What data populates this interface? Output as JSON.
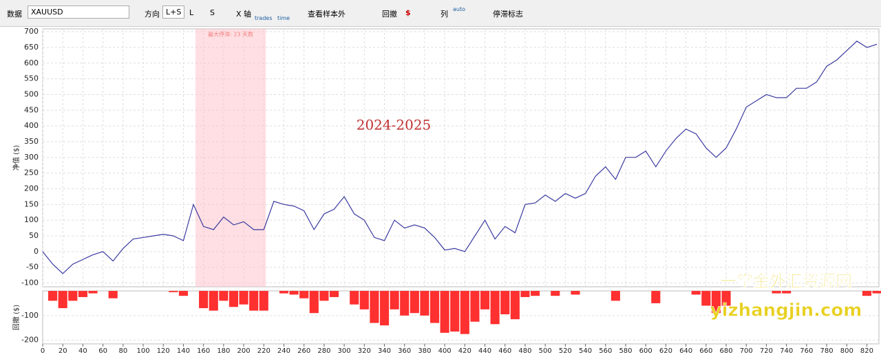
{
  "toolbar": {
    "data_label": "数据",
    "symbol": "XAUUSD",
    "direction_label": "方向",
    "direction_options": [
      "L+S",
      "L",
      "S"
    ],
    "x_axis_label": "X 轴",
    "x_axis_options": [
      "trades",
      "time"
    ],
    "out_of_sample_label": "查看样本外",
    "drawdown_label": "回撤",
    "drawdown_icon": "$",
    "columns_label": "列",
    "columns_icon": "auto",
    "stagnation_label": "停滞标志"
  },
  "chart_data": [
    {
      "type": "line",
      "ylabel": "净值 ($)",
      "annotation": "2024-2025",
      "stagnation": {
        "label": "最大停滞: 23 天数",
        "x_range": [
          152,
          222
        ]
      },
      "color": "#3a3aa0",
      "grid": true,
      "x": [
        0,
        10,
        20,
        30,
        40,
        50,
        60,
        70,
        80,
        90,
        100,
        110,
        120,
        130,
        140,
        150,
        160,
        170,
        180,
        190,
        200,
        210,
        220,
        230,
        240,
        250,
        260,
        270,
        280,
        290,
        300,
        310,
        320,
        330,
        340,
        350,
        360,
        370,
        380,
        390,
        400,
        410,
        420,
        430,
        440,
        450,
        460,
        470,
        480,
        490,
        500,
        510,
        520,
        530,
        540,
        550,
        560,
        570,
        580,
        590,
        600,
        610,
        620,
        630,
        640,
        650,
        660,
        670,
        680,
        690,
        700,
        710,
        720,
        730,
        740,
        750,
        760,
        770,
        780,
        790,
        800,
        810,
        820,
        830
      ],
      "values": [
        0,
        -40,
        -70,
        -40,
        -25,
        -10,
        0,
        -30,
        10,
        40,
        45,
        50,
        55,
        50,
        35,
        150,
        80,
        70,
        110,
        85,
        95,
        70,
        70,
        160,
        150,
        145,
        130,
        70,
        120,
        135,
        175,
        120,
        100,
        45,
        35,
        100,
        75,
        85,
        75,
        45,
        5,
        10,
        0,
        50,
        100,
        40,
        80,
        60,
        150,
        155,
        180,
        160,
        185,
        170,
        185,
        240,
        270,
        230,
        300,
        300,
        320,
        270,
        320,
        360,
        390,
        375,
        330,
        300,
        330,
        390,
        460,
        480,
        500,
        490,
        490,
        520,
        520,
        540,
        590,
        610,
        640,
        670,
        650,
        660
      ],
      "xlim": [
        0,
        832
      ],
      "xticks": [
        0,
        20,
        40,
        60,
        80,
        100,
        120,
        140,
        160,
        180,
        200,
        220,
        240,
        260,
        280,
        300,
        320,
        340,
        360,
        380,
        400,
        420,
        440,
        460,
        480,
        500,
        520,
        540,
        560,
        580,
        600,
        620,
        640,
        660,
        680,
        700,
        720,
        740,
        760,
        780,
        800,
        820
      ],
      "ylim": [
        -112,
        709
      ],
      "yticks": [
        -100,
        -50,
        0,
        50,
        100,
        150,
        200,
        250,
        300,
        350,
        400,
        450,
        500,
        550,
        600,
        650,
        700
      ]
    },
    {
      "type": "bar",
      "ylabel": "回撤 ($)",
      "color": "#ff3030",
      "grid": true,
      "x": [
        0,
        10,
        20,
        30,
        40,
        50,
        60,
        70,
        80,
        90,
        100,
        110,
        120,
        130,
        140,
        150,
        160,
        170,
        180,
        190,
        200,
        210,
        220,
        230,
        240,
        250,
        260,
        270,
        280,
        290,
        300,
        310,
        320,
        330,
        340,
        350,
        360,
        370,
        380,
        390,
        400,
        410,
        420,
        430,
        440,
        450,
        460,
        470,
        480,
        490,
        500,
        510,
        520,
        530,
        540,
        550,
        560,
        570,
        580,
        590,
        600,
        610,
        620,
        630,
        640,
        650,
        660,
        670,
        680,
        690,
        700,
        710,
        720,
        730,
        740,
        750,
        760,
        770,
        780,
        790,
        800,
        810,
        820,
        830
      ],
      "values": [
        0,
        -40,
        -70,
        -40,
        -25,
        -10,
        0,
        -30,
        0,
        0,
        0,
        0,
        0,
        -5,
        -20,
        0,
        -70,
        -80,
        -40,
        -65,
        -55,
        -80,
        -80,
        0,
        -10,
        -15,
        -30,
        -90,
        -40,
        -25,
        0,
        -55,
        -75,
        -130,
        -140,
        -75,
        -100,
        -90,
        -100,
        -130,
        -170,
        -165,
        -175,
        -125,
        -75,
        -135,
        -95,
        -115,
        -25,
        -20,
        0,
        -20,
        0,
        -15,
        0,
        0,
        0,
        -40,
        0,
        0,
        0,
        -50,
        0,
        0,
        0,
        -15,
        -60,
        -90,
        -60,
        0,
        0,
        0,
        0,
        -10,
        -10,
        0,
        0,
        0,
        0,
        0,
        0,
        0,
        -20,
        -10
      ],
      "xlim": [
        0,
        832
      ],
      "ylim": [
        -215,
        0
      ],
      "yticks": [
        -200,
        -100
      ]
    }
  ],
  "watermark": {
    "cn": "一掌金外汇资源网",
    "url": "yizhangjin.com"
  }
}
